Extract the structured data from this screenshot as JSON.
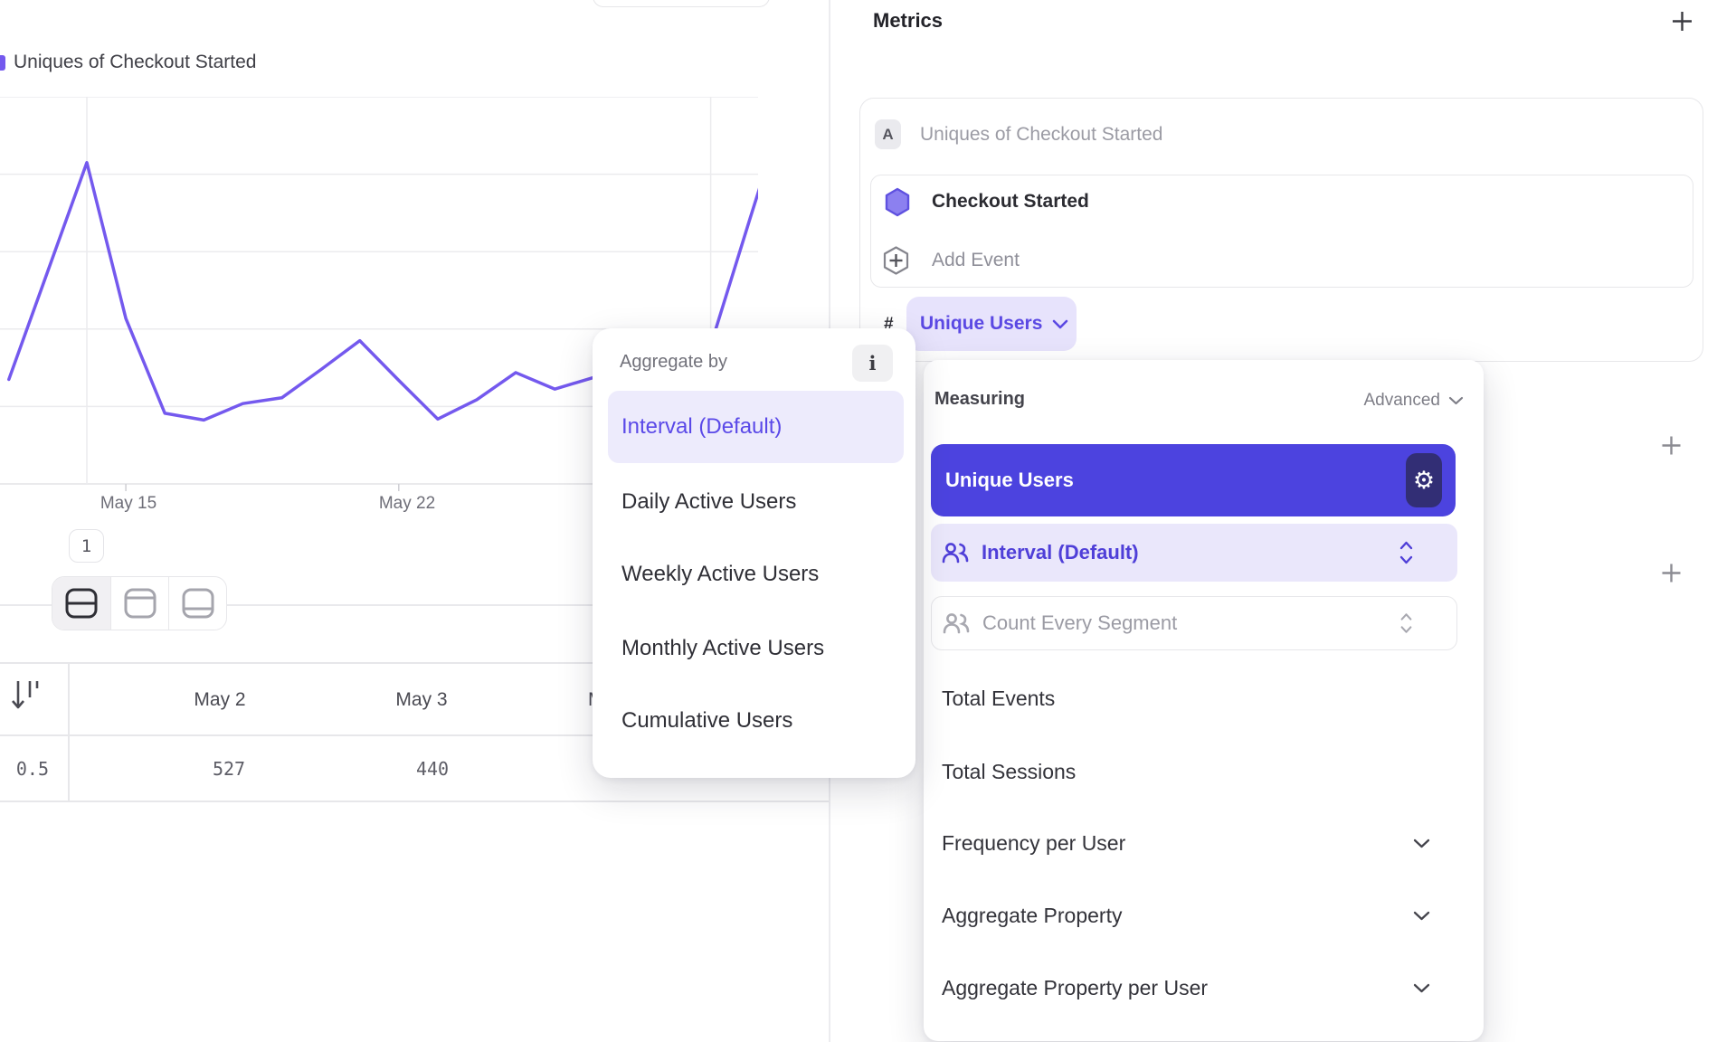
{
  "left_panel": {
    "legend": {
      "label": "Uniques of Checkout Started",
      "color": "#7459EE"
    },
    "page_badge": "1",
    "layout_toggle": {
      "options": [
        "split-middle",
        "split-top",
        "split-bottom"
      ],
      "active": "split-middle"
    },
    "table": {
      "row_label": "0.5",
      "columns": [
        "May 2",
        "May 3",
        "M"
      ],
      "values": [
        "527",
        "440"
      ]
    }
  },
  "chart_data": {
    "type": "line",
    "title": "Uniques of Checkout Started",
    "xlabel": "",
    "ylabel": "",
    "ylim": [
      0,
      2000
    ],
    "ygrid_values": [
      0,
      400,
      800,
      1200,
      1600,
      2000
    ],
    "grid": "on",
    "x_ticks": [
      {
        "label": "May 15",
        "date": "May 15"
      },
      {
        "label": "May 22",
        "date": "May 22"
      }
    ],
    "vgrid_dates": [
      "May 14",
      "May 30"
    ],
    "series": [
      {
        "name": "Uniques of Checkout Started",
        "color": "#7459EE",
        "points": [
          {
            "date": "May 12",
            "value": 540
          },
          {
            "date": "May 13",
            "value": 1100
          },
          {
            "date": "May 14",
            "value": 1660
          },
          {
            "date": "May 15",
            "value": 855
          },
          {
            "date": "May 16",
            "value": 365
          },
          {
            "date": "May 17",
            "value": 330
          },
          {
            "date": "May 18",
            "value": 415
          },
          {
            "date": "May 19",
            "value": 445
          },
          {
            "date": "May 20",
            "value": 590
          },
          {
            "date": "May 21",
            "value": 740
          },
          {
            "date": "May 22",
            "value": 535
          },
          {
            "date": "May 23",
            "value": 335
          },
          {
            "date": "May 24",
            "value": 435
          },
          {
            "date": "May 25",
            "value": 575
          },
          {
            "date": "May 26",
            "value": 490
          },
          {
            "date": "May 27",
            "value": 550
          },
          {
            "date": "May 28",
            "value": 505
          },
          {
            "date": "May 29",
            "value": 560
          },
          {
            "date": "May 30",
            "value": 715
          },
          {
            "date": "May 31",
            "value": 1365
          },
          {
            "date": "Jun 1",
            "value": 2005
          }
        ]
      }
    ]
  },
  "aggregate_popup": {
    "title": "Aggregate by",
    "info_icon": "i",
    "items": [
      {
        "label": "Interval (Default)",
        "selected": true
      },
      {
        "label": "Daily Active Users",
        "selected": false
      },
      {
        "label": "Weekly Active Users",
        "selected": false
      },
      {
        "label": "Monthly Active Users",
        "selected": false
      },
      {
        "label": "Cumulative Users",
        "selected": false
      }
    ]
  },
  "metrics_panel": {
    "title": "Metrics",
    "card": {
      "badge": "A",
      "name": "Uniques of Checkout Started",
      "event_name": "Checkout Started",
      "add_event_label": "Add Event",
      "metric_symbol": "#",
      "metric_chip": "Unique Users"
    }
  },
  "measuring_popup": {
    "title": "Measuring",
    "mode_label": "Advanced",
    "selected_metric": "Unique Users",
    "selects": [
      {
        "label": "Interval (Default)",
        "disabled": false
      },
      {
        "label": "Count Every Segment",
        "disabled": true
      }
    ],
    "options": [
      {
        "label": "Total Events",
        "has_chevron": false
      },
      {
        "label": "Total Sessions",
        "has_chevron": false
      },
      {
        "label": "Frequency per User",
        "has_chevron": true
      },
      {
        "label": "Aggregate Property",
        "has_chevron": true
      },
      {
        "label": "Aggregate Property per User",
        "has_chevron": true
      }
    ]
  },
  "colors": {
    "accent_line": "#7459EE",
    "selected_button_bg": "#4C43DF",
    "gear_button_bg": "#322E75",
    "lavender_bg": "#EAE7FB",
    "chip_bg": "#E7E3FC",
    "chip_text": "#5B49E3",
    "gridline": "#ebebee"
  }
}
